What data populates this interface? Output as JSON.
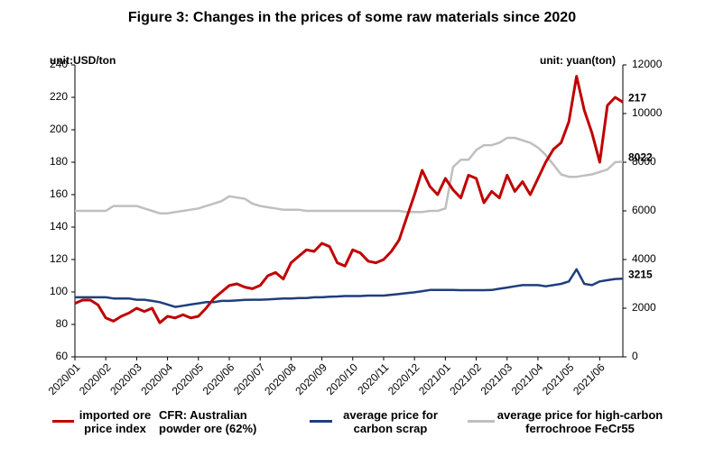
{
  "chart_data": {
    "type": "line",
    "title": "Figure 3: Changes in the prices of some raw materials since 2020",
    "y_unit": "unit:USD/ton",
    "y2_unit": "unit: yuan(ton)",
    "legend_note": "CFR: Australian powder ore (62%)",
    "categories": [
      "2020/01",
      null,
      null,
      null,
      "2020/02",
      null,
      null,
      null,
      "2020/03",
      null,
      null,
      null,
      "2020/04",
      null,
      null,
      null,
      "2020/05",
      null,
      null,
      null,
      "2020/06",
      null,
      null,
      null,
      "2020/07",
      null,
      null,
      null,
      "2020/08",
      null,
      null,
      null,
      "2020/09",
      null,
      null,
      null,
      "2020/10",
      null,
      null,
      null,
      "2020/11",
      null,
      null,
      null,
      "2020/12",
      null,
      null,
      null,
      "2021/01",
      null,
      null,
      null,
      "2021/02",
      null,
      null,
      null,
      "2021/03",
      null,
      null,
      null,
      "2021/04",
      null,
      null,
      null,
      "2021/05",
      null,
      null,
      null,
      "2021/06",
      null,
      null,
      null
    ],
    "ylim": [
      60,
      240
    ],
    "yticks": [
      60,
      80,
      100,
      120,
      140,
      160,
      180,
      200,
      220,
      240
    ],
    "y2lim": [
      0,
      12000
    ],
    "y2ticks": [
      0,
      2000,
      4000,
      6000,
      8000,
      10000,
      12000
    ],
    "series": [
      {
        "name": "imported ore price index",
        "color": "#c00000",
        "axis": "y",
        "values": [
          93,
          95,
          95,
          92,
          84,
          82,
          85,
          87,
          90,
          88,
          90,
          81,
          85,
          84,
          86,
          84,
          85,
          90,
          96,
          100,
          104,
          105,
          103,
          102,
          104,
          110,
          112,
          108,
          118,
          122,
          126,
          125,
          130,
          128,
          118,
          116,
          126,
          124,
          119,
          118,
          120,
          125,
          132,
          146,
          160,
          175,
          165,
          160,
          170,
          163,
          158,
          172,
          170,
          155,
          162,
          158,
          172,
          162,
          168,
          160,
          170,
          180,
          188,
          192,
          205,
          233,
          212,
          198,
          180,
          215,
          220,
          217
        ]
      },
      {
        "name": "average price for carbon scrap",
        "color": "#1f3e7c",
        "axis": "y2",
        "values": [
          2450,
          2450,
          2450,
          2450,
          2450,
          2400,
          2400,
          2400,
          2350,
          2350,
          2300,
          2250,
          2150,
          2050,
          2100,
          2150,
          2200,
          2250,
          2250,
          2300,
          2300,
          2320,
          2340,
          2350,
          2350,
          2360,
          2380,
          2400,
          2400,
          2420,
          2420,
          2450,
          2450,
          2470,
          2480,
          2500,
          2500,
          2500,
          2520,
          2520,
          2520,
          2550,
          2580,
          2620,
          2650,
          2700,
          2750,
          2750,
          2750,
          2750,
          2740,
          2740,
          2740,
          2740,
          2750,
          2800,
          2850,
          2900,
          2950,
          2950,
          2950,
          2900,
          2950,
          3000,
          3100,
          3600,
          3000,
          2950,
          3100,
          3150,
          3200,
          3215
        ]
      },
      {
        "name": "average price for high-carbon ferrochrooe FeCr55",
        "color": "#bfbfbf",
        "axis": "y2",
        "values": [
          6000,
          6000,
          6000,
          6000,
          6000,
          6200,
          6200,
          6200,
          6200,
          6100,
          6000,
          5900,
          5900,
          5950,
          6000,
          6050,
          6100,
          6200,
          6300,
          6400,
          6600,
          6550,
          6500,
          6300,
          6200,
          6150,
          6100,
          6050,
          6050,
          6050,
          6000,
          6000,
          6000,
          6000,
          6000,
          6000,
          6000,
          6000,
          6000,
          6000,
          6000,
          6000,
          6000,
          5950,
          5950,
          5950,
          6000,
          6000,
          6100,
          7800,
          8100,
          8100,
          8500,
          8700,
          8700,
          8800,
          9000,
          9000,
          8900,
          8800,
          8600,
          8300,
          7900,
          7500,
          7400,
          7400,
          7450,
          7500,
          7600,
          7700,
          8000,
          8022
        ]
      }
    ]
  }
}
